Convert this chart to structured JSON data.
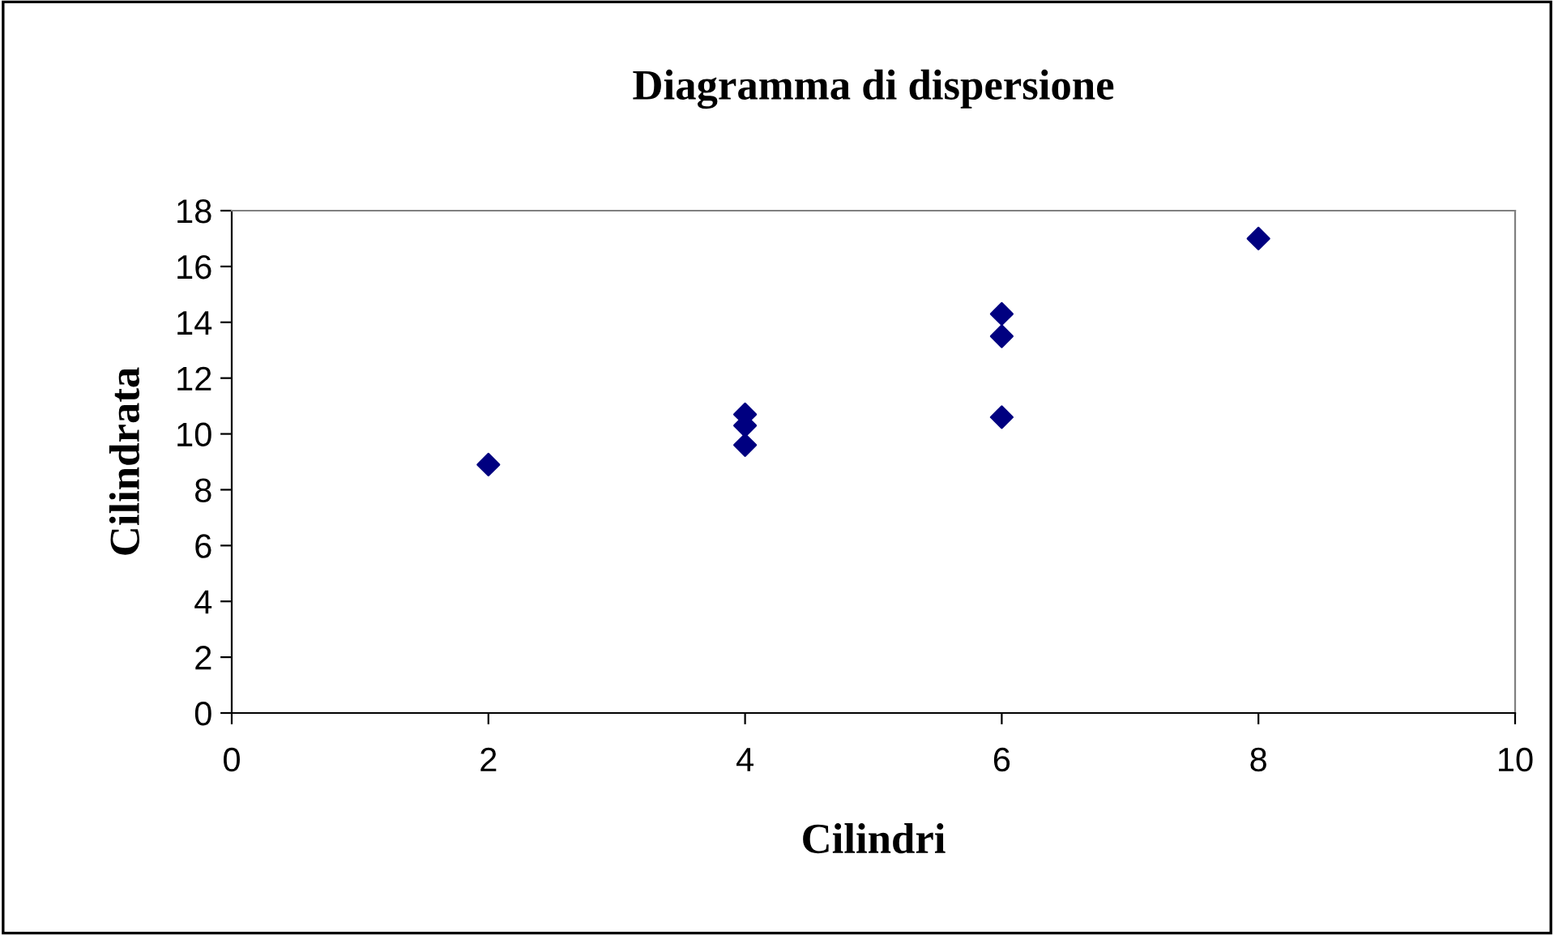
{
  "chart_data": {
    "type": "scatter",
    "title": "Diagramma di dispersione",
    "xlabel": "Cilindri",
    "ylabel": "Cilindrata",
    "x": [
      2,
      4,
      4,
      4,
      6,
      6,
      6,
      8
    ],
    "series": [
      {
        "color": "#000080",
        "values": [
          8.9,
          10.7,
          10.3,
          9.6,
          14.3,
          13.5,
          10.6,
          17.0
        ]
      }
    ],
    "xlim": [
      0,
      10
    ],
    "xticks": [
      0,
      2,
      4,
      6,
      8,
      10
    ],
    "ylim": [
      0,
      18
    ],
    "yticks": [
      0,
      2,
      4,
      6,
      8,
      10,
      12,
      14,
      16,
      18
    ],
    "marker": "diamond",
    "grid": false,
    "legend": false
  }
}
